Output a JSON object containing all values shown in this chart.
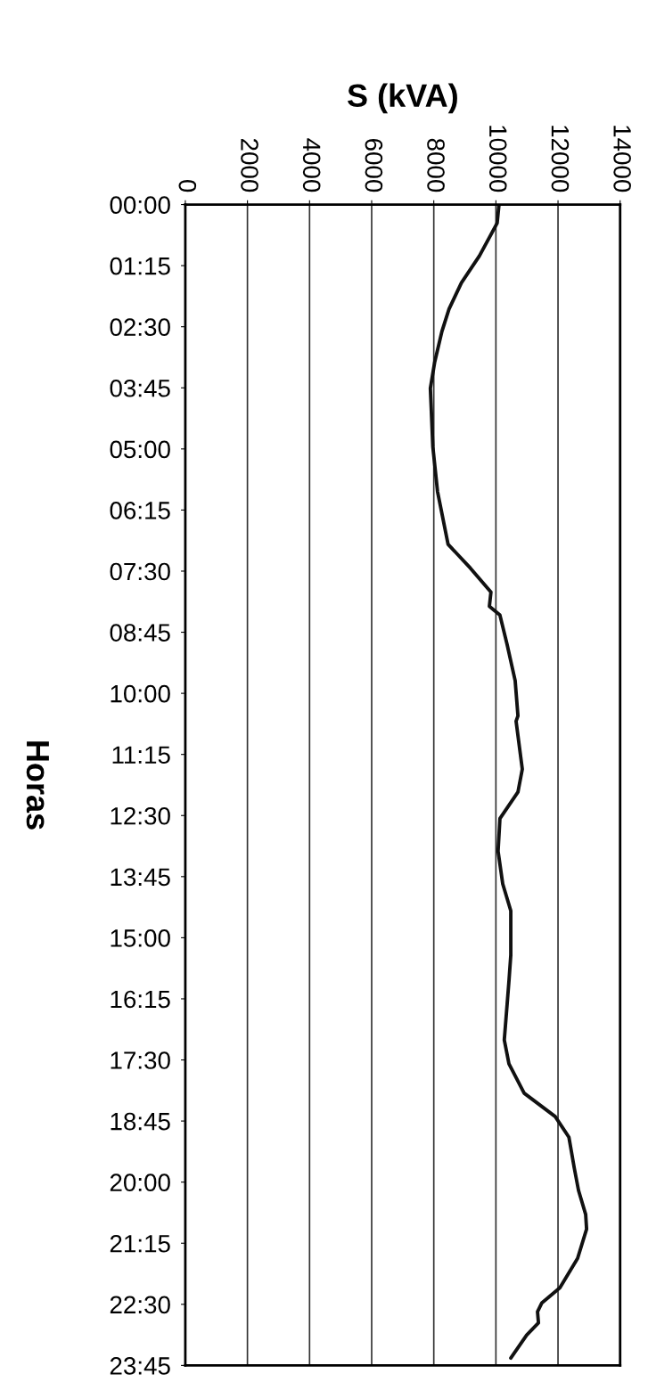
{
  "chart_data": {
    "type": "line",
    "orientation": "horizontal",
    "xlabel": "S (kVA)",
    "ylabel": "Horas",
    "x": [
      0,
      0.38,
      1.05,
      1.6,
      2.14,
      2.6,
      3.22,
      3.76,
      4.06,
      4.96,
      5.87,
      6.95,
      7.44,
      7.93,
      8.22,
      8.4,
      9.0,
      9.74,
      10.46,
      10.57,
      11.55,
      12.02,
      12.56,
      13.23,
      13.9,
      14.45,
      15.35,
      15.89,
      16.37,
      17.09,
      17.58,
      18.18,
      18.66,
      19.08,
      19.7,
      20.17,
      20.66,
      20.96,
      21.56,
      22.16,
      22.47,
      22.65,
      22.88,
      23.13,
      23.6
    ],
    "series": [
      {
        "color": "#111111",
        "values": [
          10100,
          10040,
          9470,
          8890,
          8490,
          8260,
          8030,
          7890,
          7910,
          7970,
          8120,
          8460,
          9180,
          9840,
          9790,
          10130,
          10360,
          10620,
          10710,
          10650,
          10850,
          10710,
          10130,
          10070,
          10220,
          10480,
          10480,
          10420,
          10360,
          10270,
          10420,
          10910,
          11910,
          12350,
          12520,
          12660,
          12890,
          12920,
          12630,
          12060,
          11480,
          11340,
          11370,
          10990,
          10480
        ]
      }
    ],
    "xlim": [
      0,
      14000
    ],
    "xticks": [
      0,
      2000,
      4000,
      6000,
      8000,
      10000,
      12000,
      14000
    ],
    "ylim": [
      23.75,
      0
    ],
    "yticks": [
      {
        "value": 0,
        "label": "00:00"
      },
      {
        "value": 1.25,
        "label": "01:15"
      },
      {
        "value": 2.5,
        "label": "02:30"
      },
      {
        "value": 3.75,
        "label": "03:45"
      },
      {
        "value": 5,
        "label": "05:00"
      },
      {
        "value": 6.25,
        "label": "06:15"
      },
      {
        "value": 7.5,
        "label": "07:30"
      },
      {
        "value": 8.75,
        "label": "08:45"
      },
      {
        "value": 10,
        "label": "10:00"
      },
      {
        "value": 11.25,
        "label": "11:15"
      },
      {
        "value": 12.5,
        "label": "12:30"
      },
      {
        "value": 13.75,
        "label": "13:45"
      },
      {
        "value": 15,
        "label": "15:00"
      },
      {
        "value": 16.25,
        "label": "16:15"
      },
      {
        "value": 17.5,
        "label": "17:30"
      },
      {
        "value": 18.75,
        "label": "18:45"
      },
      {
        "value": 20,
        "label": "20:00"
      },
      {
        "value": 21.25,
        "label": "21:15"
      },
      {
        "value": 22.5,
        "label": "22:30"
      },
      {
        "value": 23.75,
        "label": "23:45"
      }
    ],
    "grid": "x",
    "legend": false,
    "marker": "none",
    "line_style": "solid"
  }
}
